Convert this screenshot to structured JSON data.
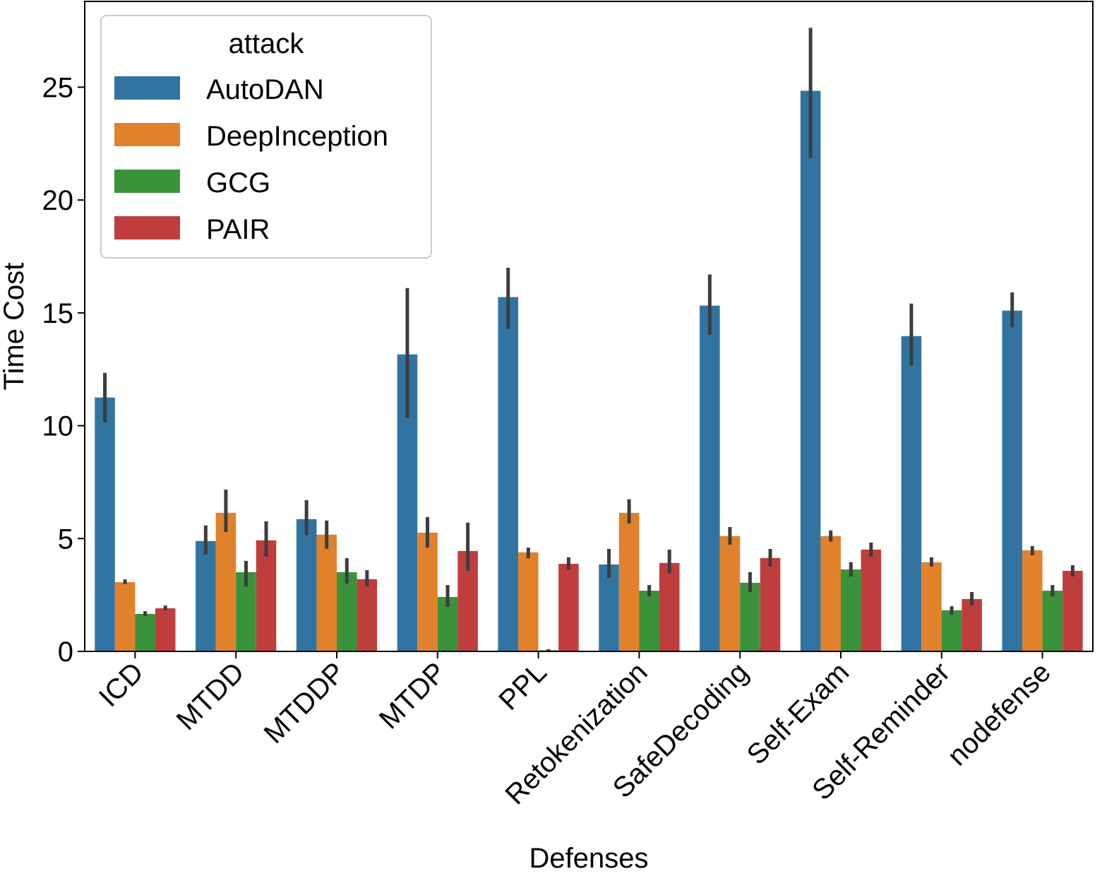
{
  "chart_data": {
    "type": "bar",
    "xlabel": "Defenses",
    "ylabel": "Time Cost",
    "ylim": [
      0,
      28.8
    ],
    "yticks": [
      0,
      5,
      10,
      15,
      20,
      25
    ],
    "grid": false,
    "legend": {
      "title": "attack",
      "placement": "top-left"
    },
    "categories": [
      "ICD",
      "MTDD",
      "MTDDP",
      "MTDP",
      "PPL",
      "Retokenization",
      "SafeDecoding",
      "Self-Exam",
      "Self-Reminder",
      "nodefense"
    ],
    "series": [
      {
        "name": "AutoDAN",
        "color": "#3274a1",
        "values": [
          11.25,
          4.89,
          5.86,
          13.16,
          15.7,
          3.85,
          15.32,
          24.84,
          13.97,
          15.1
        ],
        "error": [
          [
            10.15,
            12.34
          ],
          [
            4.29,
            5.58
          ],
          [
            5.14,
            6.7
          ],
          [
            10.34,
            16.1
          ],
          [
            14.3,
            17.0
          ],
          [
            3.26,
            4.54
          ],
          [
            14.03,
            16.7
          ],
          [
            21.87,
            27.63
          ],
          [
            12.66,
            15.41
          ],
          [
            14.35,
            15.91
          ]
        ]
      },
      {
        "name": "DeepInception",
        "color": "#e1812c",
        "values": [
          3.07,
          6.14,
          5.17,
          5.26,
          4.39,
          6.14,
          5.11,
          5.11,
          3.95,
          4.48
        ],
        "error": [
          [
            2.98,
            3.19
          ],
          [
            5.29,
            7.17
          ],
          [
            4.54,
            5.8
          ],
          [
            4.6,
            5.95
          ],
          [
            4.13,
            4.6
          ],
          [
            5.67,
            6.74
          ],
          [
            4.73,
            5.51
          ],
          [
            4.86,
            5.36
          ],
          [
            3.76,
            4.17
          ],
          [
            4.26,
            4.67
          ]
        ]
      },
      {
        "name": "GCG",
        "color": "#3a923a",
        "values": [
          1.66,
          3.51,
          3.51,
          2.41,
          0.05,
          2.69,
          3.04,
          3.63,
          1.82,
          2.69
        ],
        "error": [
          [
            1.57,
            1.78
          ],
          [
            2.88,
            4.01
          ],
          [
            3.0,
            4.13
          ],
          [
            1.97,
            2.94
          ],
          [
            0,
            0.1
          ],
          [
            2.44,
            2.94
          ],
          [
            2.63,
            3.51
          ],
          [
            3.32,
            3.95
          ],
          [
            1.63,
            2.0
          ],
          [
            2.44,
            2.94
          ]
        ]
      },
      {
        "name": "PAIR",
        "color": "#c03d3e",
        "values": [
          1.91,
          4.92,
          3.2,
          4.45,
          3.88,
          3.92,
          4.14,
          4.51,
          2.32,
          3.57
        ],
        "error": [
          [
            1.82,
            2.03
          ],
          [
            4.2,
            5.76
          ],
          [
            2.88,
            3.6
          ],
          [
            3.57,
            5.7
          ],
          [
            3.63,
            4.17
          ],
          [
            3.45,
            4.51
          ],
          [
            3.76,
            4.54
          ],
          [
            4.2,
            4.82
          ],
          [
            2.04,
            2.63
          ],
          [
            3.32,
            3.82
          ]
        ]
      }
    ]
  }
}
